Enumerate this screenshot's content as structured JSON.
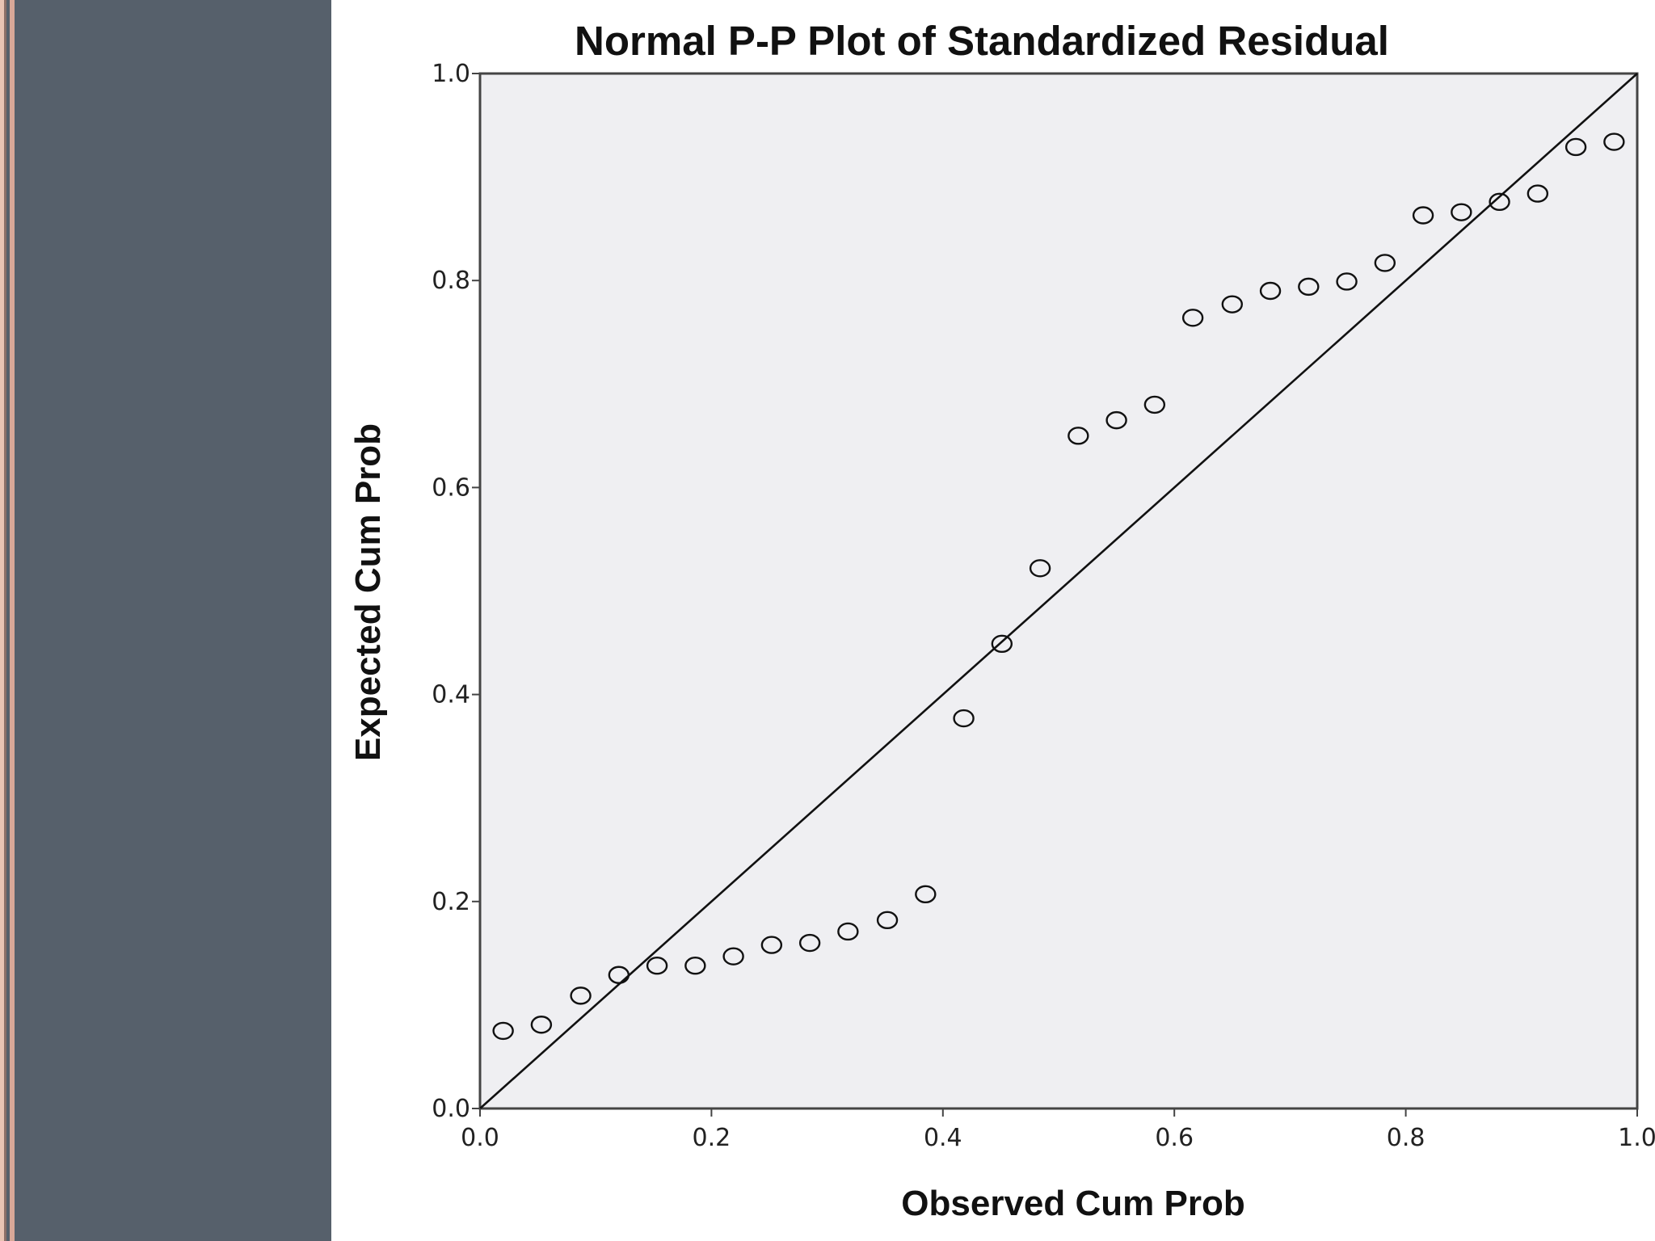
{
  "panel": {
    "background": "#56606b",
    "stripe_color": "#e8b8a8"
  },
  "chart_data": {
    "type": "scatter",
    "title": "Normal P-P Plot of Standardized Residual",
    "xlabel": "Observed Cum Prob",
    "ylabel": "Expected Cum Prob",
    "xlim": [
      0,
      1
    ],
    "ylim": [
      0,
      1
    ],
    "x_ticks": [
      "0.0",
      "0.2",
      "0.4",
      "0.6",
      "0.8",
      "1.0"
    ],
    "y_ticks": [
      "0.0",
      "0.2",
      "0.4",
      "0.6",
      "0.8",
      "1.0"
    ],
    "reference_line": {
      "from": [
        0,
        0
      ],
      "to": [
        1,
        1
      ]
    },
    "plot_background": "#efeff2",
    "marker": "open-circle",
    "points": [
      {
        "x": 0.02,
        "y": 0.075
      },
      {
        "x": 0.053,
        "y": 0.081
      },
      {
        "x": 0.087,
        "y": 0.109
      },
      {
        "x": 0.12,
        "y": 0.129
      },
      {
        "x": 0.153,
        "y": 0.138
      },
      {
        "x": 0.186,
        "y": 0.138
      },
      {
        "x": 0.219,
        "y": 0.147
      },
      {
        "x": 0.252,
        "y": 0.158
      },
      {
        "x": 0.285,
        "y": 0.16
      },
      {
        "x": 0.318,
        "y": 0.171
      },
      {
        "x": 0.352,
        "y": 0.182
      },
      {
        "x": 0.385,
        "y": 0.207
      },
      {
        "x": 0.418,
        "y": 0.377
      },
      {
        "x": 0.451,
        "y": 0.449
      },
      {
        "x": 0.484,
        "y": 0.522
      },
      {
        "x": 0.517,
        "y": 0.65
      },
      {
        "x": 0.55,
        "y": 0.665
      },
      {
        "x": 0.583,
        "y": 0.68
      },
      {
        "x": 0.616,
        "y": 0.764
      },
      {
        "x": 0.65,
        "y": 0.777
      },
      {
        "x": 0.683,
        "y": 0.79
      },
      {
        "x": 0.716,
        "y": 0.794
      },
      {
        "x": 0.749,
        "y": 0.799
      },
      {
        "x": 0.782,
        "y": 0.817
      },
      {
        "x": 0.815,
        "y": 0.863
      },
      {
        "x": 0.848,
        "y": 0.866
      },
      {
        "x": 0.881,
        "y": 0.876
      },
      {
        "x": 0.914,
        "y": 0.884
      },
      {
        "x": 0.947,
        "y": 0.929
      },
      {
        "x": 0.98,
        "y": 0.934
      }
    ]
  }
}
